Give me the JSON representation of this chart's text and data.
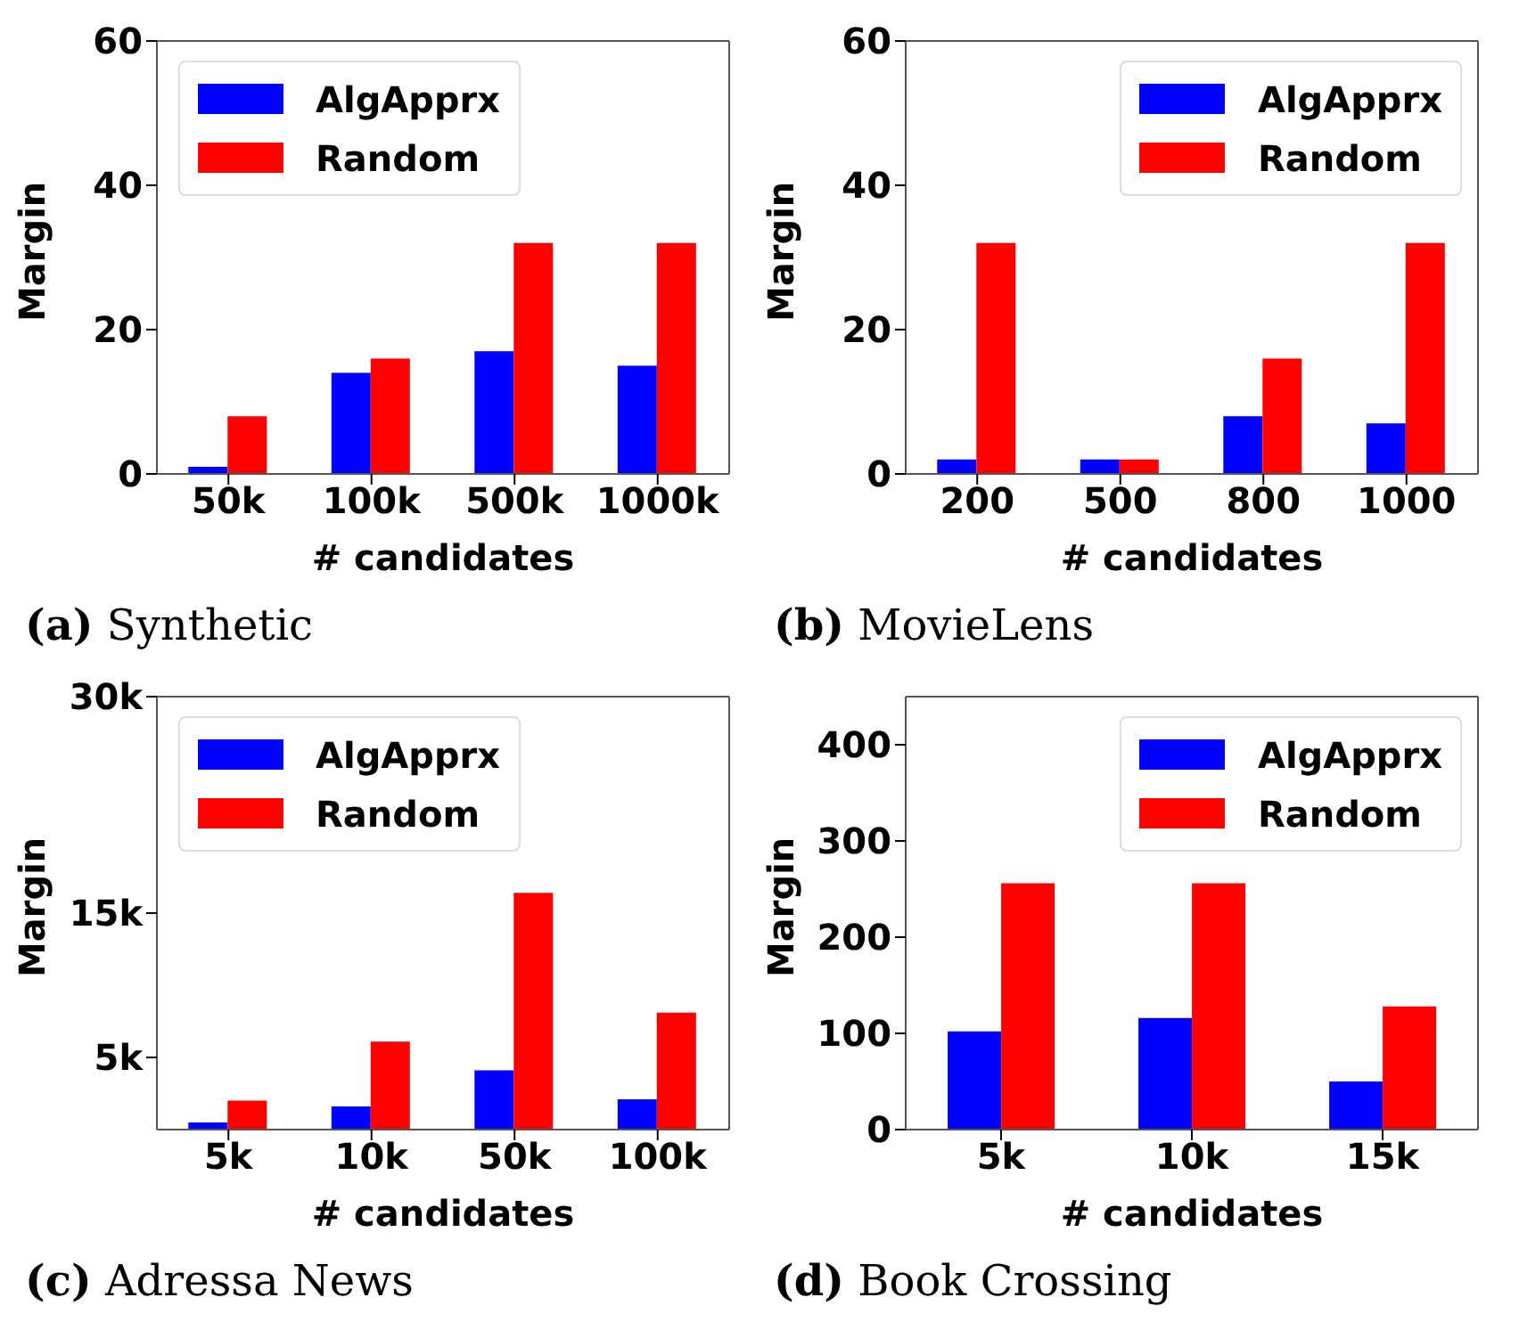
{
  "chart_data": [
    {
      "type": "bar",
      "title": "(a) Synthetic",
      "xlabel": "# candidates",
      "ylabel": "Margin",
      "categories": [
        "50k",
        "100k",
        "500k",
        "1000k"
      ],
      "series": [
        {
          "name": "AlgApprx",
          "color": "#0000ff",
          "values": [
            1,
            14,
            17,
            15
          ]
        },
        {
          "name": "Random",
          "color": "#ff0000",
          "values": [
            8,
            16,
            32,
            32
          ]
        }
      ],
      "ylim": [
        0,
        60
      ],
      "yticks": [
        0,
        20,
        40,
        60
      ],
      "legend": "top left",
      "grid": false
    },
    {
      "type": "bar",
      "title": "(b) MovieLens",
      "xlabel": "# candidates",
      "ylabel": "Margin",
      "categories": [
        "200",
        "500",
        "800",
        "1000"
      ],
      "series": [
        {
          "name": "AlgApprx",
          "color": "#0000ff",
          "values": [
            2,
            2,
            8,
            7
          ]
        },
        {
          "name": "Random",
          "color": "#ff0000",
          "values": [
            32,
            2,
            16,
            32
          ]
        }
      ],
      "ylim": [
        0,
        60
      ],
      "yticks": [
        0,
        20,
        40,
        60
      ],
      "legend": "top right",
      "grid": false
    },
    {
      "type": "bar",
      "title": "(c) Adressa News",
      "xlabel": "# candidates",
      "ylabel": "Margin",
      "categories": [
        "5k",
        "10k",
        "50k",
        "100k"
      ],
      "series": [
        {
          "name": "AlgApprx",
          "color": "#0000ff",
          "values": [
            500,
            1600,
            4100,
            2100
          ]
        },
        {
          "name": "Random",
          "color": "#ff0000",
          "values": [
            2000,
            6100,
            16400,
            8100
          ]
        }
      ],
      "ylim": [
        0,
        30000
      ],
      "yticks": [
        {
          "value": 5000,
          "label": "5k"
        },
        {
          "value": 15000,
          "label": "15k"
        },
        {
          "value": 30000,
          "label": "30k"
        }
      ],
      "legend": "top left",
      "grid": false
    },
    {
      "type": "bar",
      "title": "(d) Book Crossing",
      "xlabel": "# candidates",
      "ylabel": "Margin",
      "categories": [
        "5k",
        "10k",
        "15k"
      ],
      "series": [
        {
          "name": "AlgApprx",
          "color": "#0000ff",
          "values": [
            102,
            116,
            50
          ]
        },
        {
          "name": "Random",
          "color": "#ff0000",
          "values": [
            256,
            256,
            128
          ]
        }
      ],
      "ylim": [
        0,
        450
      ],
      "yticks": [
        0,
        100,
        200,
        300,
        400
      ],
      "legend": "top right",
      "grid": false
    }
  ]
}
